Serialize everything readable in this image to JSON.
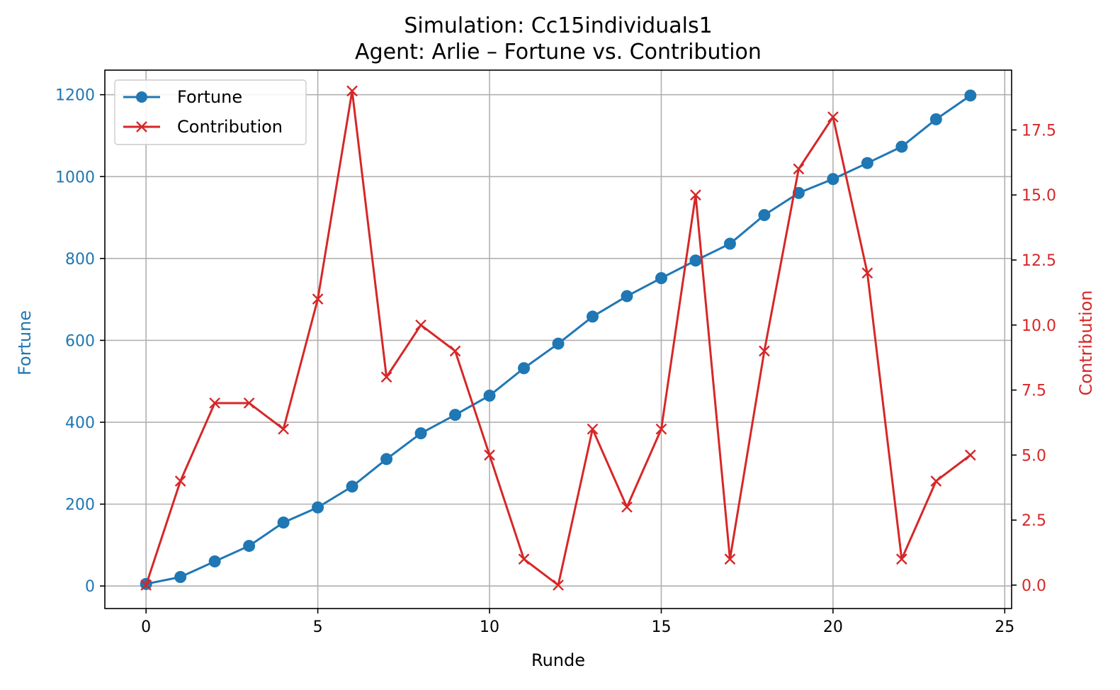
{
  "chart_data": {
    "type": "line",
    "title": "Simulation: Cc15individuals1",
    "subtitle": "Agent: Arlie – Fortune vs. Contribution",
    "xlabel": "Runde",
    "ylabel_left": "Fortune",
    "ylabel_right": "Contribution",
    "xlim": [
      -1.2,
      25.2
    ],
    "ylim_left": [
      -55,
      1260
    ],
    "ylim_right": [
      -0.9,
      19.8
    ],
    "x_ticks": [
      0,
      5,
      10,
      15,
      20,
      25
    ],
    "y_ticks_left": [
      0,
      200,
      400,
      600,
      800,
      1000,
      1200
    ],
    "y_ticks_right": [
      "0.0",
      "2.5",
      "5.0",
      "7.5",
      "10.0",
      "12.5",
      "15.0",
      "17.5"
    ],
    "grid": true,
    "legend_position": "top-left",
    "x": [
      0,
      1,
      2,
      3,
      4,
      5,
      6,
      7,
      8,
      9,
      10,
      11,
      12,
      13,
      14,
      15,
      16,
      17,
      18,
      19,
      20,
      21,
      22,
      23,
      24
    ],
    "series": [
      {
        "name": "Fortune",
        "axis": "left",
        "color": "#1f77b4",
        "marker": "circle",
        "values": [
          5,
          22,
          60,
          98,
          155,
          192,
          243,
          310,
          373,
          418,
          465,
          532,
          592,
          658,
          708,
          752,
          795,
          836,
          906,
          960,
          994,
          1033,
          1073,
          1140,
          1198
        ]
      },
      {
        "name": "Contribution",
        "axis": "right",
        "color": "#d62728",
        "marker": "x",
        "values": [
          0,
          4,
          7,
          7,
          6,
          11,
          19,
          8,
          10,
          9,
          5,
          1,
          0,
          6,
          3,
          6,
          15,
          1,
          9,
          16,
          18,
          12,
          1,
          4,
          5
        ]
      }
    ]
  }
}
